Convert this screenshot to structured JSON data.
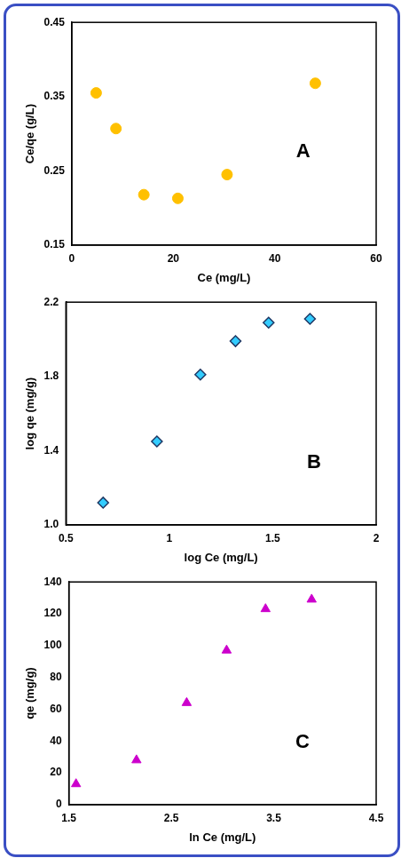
{
  "chart_data": [
    {
      "type": "scatter",
      "x_label": "Ce (mg/L)",
      "y_label": "Ce/qe (g/L)",
      "annotations": [
        "A"
      ],
      "xlim": [
        0,
        60
      ],
      "xticks": [
        0,
        20,
        40,
        60
      ],
      "ylim": [
        0.15,
        0.45
      ],
      "yticks": [
        0.15,
        0.25,
        0.35,
        0.45
      ],
      "grid": false,
      "series": [
        {
          "color": "#ffc000",
          "marker": "circle",
          "x": [
            4.8,
            8.7,
            14.2,
            20.9,
            30.6,
            48.0
          ],
          "values": [
            0.355,
            0.307,
            0.218,
            0.213,
            0.245,
            0.368
          ]
        }
      ]
    },
    {
      "type": "scatter",
      "x_label": "log Ce (mg/L)",
      "y_label": "log qe (mg/g)",
      "annotations": [
        "B"
      ],
      "xlim": [
        0.5,
        2
      ],
      "xticks": [
        0.5,
        1,
        1.5,
        2
      ],
      "ylim": [
        1,
        2.2
      ],
      "yticks": [
        {
          "value": 1,
          "label": "1.0"
        },
        1.4,
        1.8,
        2.2
      ],
      "grid": false,
      "series": [
        {
          "color": "#33ccff",
          "marker": "diamond",
          "x": [
            0.68,
            0.94,
            1.15,
            1.32,
            1.48,
            1.68
          ],
          "values": [
            1.12,
            1.45,
            1.81,
            1.99,
            2.09,
            2.11
          ]
        }
      ]
    },
    {
      "type": "scatter",
      "x_label": "ln Ce (mg/L)",
      "y_label": "qe (mg/g)",
      "annotations": [
        "C"
      ],
      "xlim": [
        1.5,
        4.5
      ],
      "xticks": [
        1.5,
        2.5,
        3.5,
        4.5
      ],
      "ylim": [
        0,
        140
      ],
      "yticks": [
        0,
        20,
        40,
        60,
        80,
        100,
        120,
        140
      ],
      "grid": false,
      "series": [
        {
          "color": "#cc00cc",
          "marker": "triangle",
          "x": [
            1.57,
            2.16,
            2.65,
            3.04,
            3.42,
            3.87
          ],
          "values": [
            13,
            28,
            64,
            97,
            123,
            129
          ]
        }
      ]
    }
  ]
}
